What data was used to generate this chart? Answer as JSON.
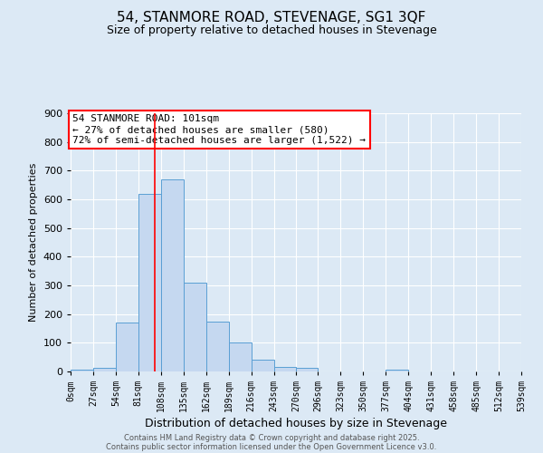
{
  "title": "54, STANMORE ROAD, STEVENAGE, SG1 3QF",
  "subtitle": "Size of property relative to detached houses in Stevenage",
  "xlabel": "Distribution of detached houses by size in Stevenage",
  "ylabel": "Number of detached properties",
  "bin_labels": [
    "0sqm",
    "27sqm",
    "54sqm",
    "81sqm",
    "108sqm",
    "135sqm",
    "162sqm",
    "189sqm",
    "216sqm",
    "243sqm",
    "270sqm",
    "296sqm",
    "323sqm",
    "350sqm",
    "377sqm",
    "404sqm",
    "431sqm",
    "458sqm",
    "485sqm",
    "512sqm",
    "539sqm"
  ],
  "bin_edges": [
    0,
    27,
    54,
    81,
    108,
    135,
    162,
    189,
    216,
    243,
    270,
    296,
    323,
    350,
    377,
    404,
    431,
    458,
    485,
    512,
    539
  ],
  "bar_heights": [
    7,
    12,
    170,
    620,
    670,
    310,
    175,
    100,
    40,
    15,
    12,
    0,
    0,
    0,
    7,
    0,
    0,
    0,
    0,
    0
  ],
  "bar_color": "#c5d8f0",
  "bar_edge_color": "#5a9fd4",
  "vline_x": 101,
  "vline_color": "red",
  "annotation_text": "54 STANMORE ROAD: 101sqm\n← 27% of detached houses are smaller (580)\n72% of semi-detached houses are larger (1,522) →",
  "annotation_box_color": "white",
  "annotation_box_edge_color": "red",
  "ylim": [
    0,
    900
  ],
  "yticks": [
    0,
    100,
    200,
    300,
    400,
    500,
    600,
    700,
    800,
    900
  ],
  "background_color": "#dce9f5",
  "footer1": "Contains HM Land Registry data © Crown copyright and database right 2025.",
  "footer2": "Contains public sector information licensed under the Open Government Licence v3.0."
}
